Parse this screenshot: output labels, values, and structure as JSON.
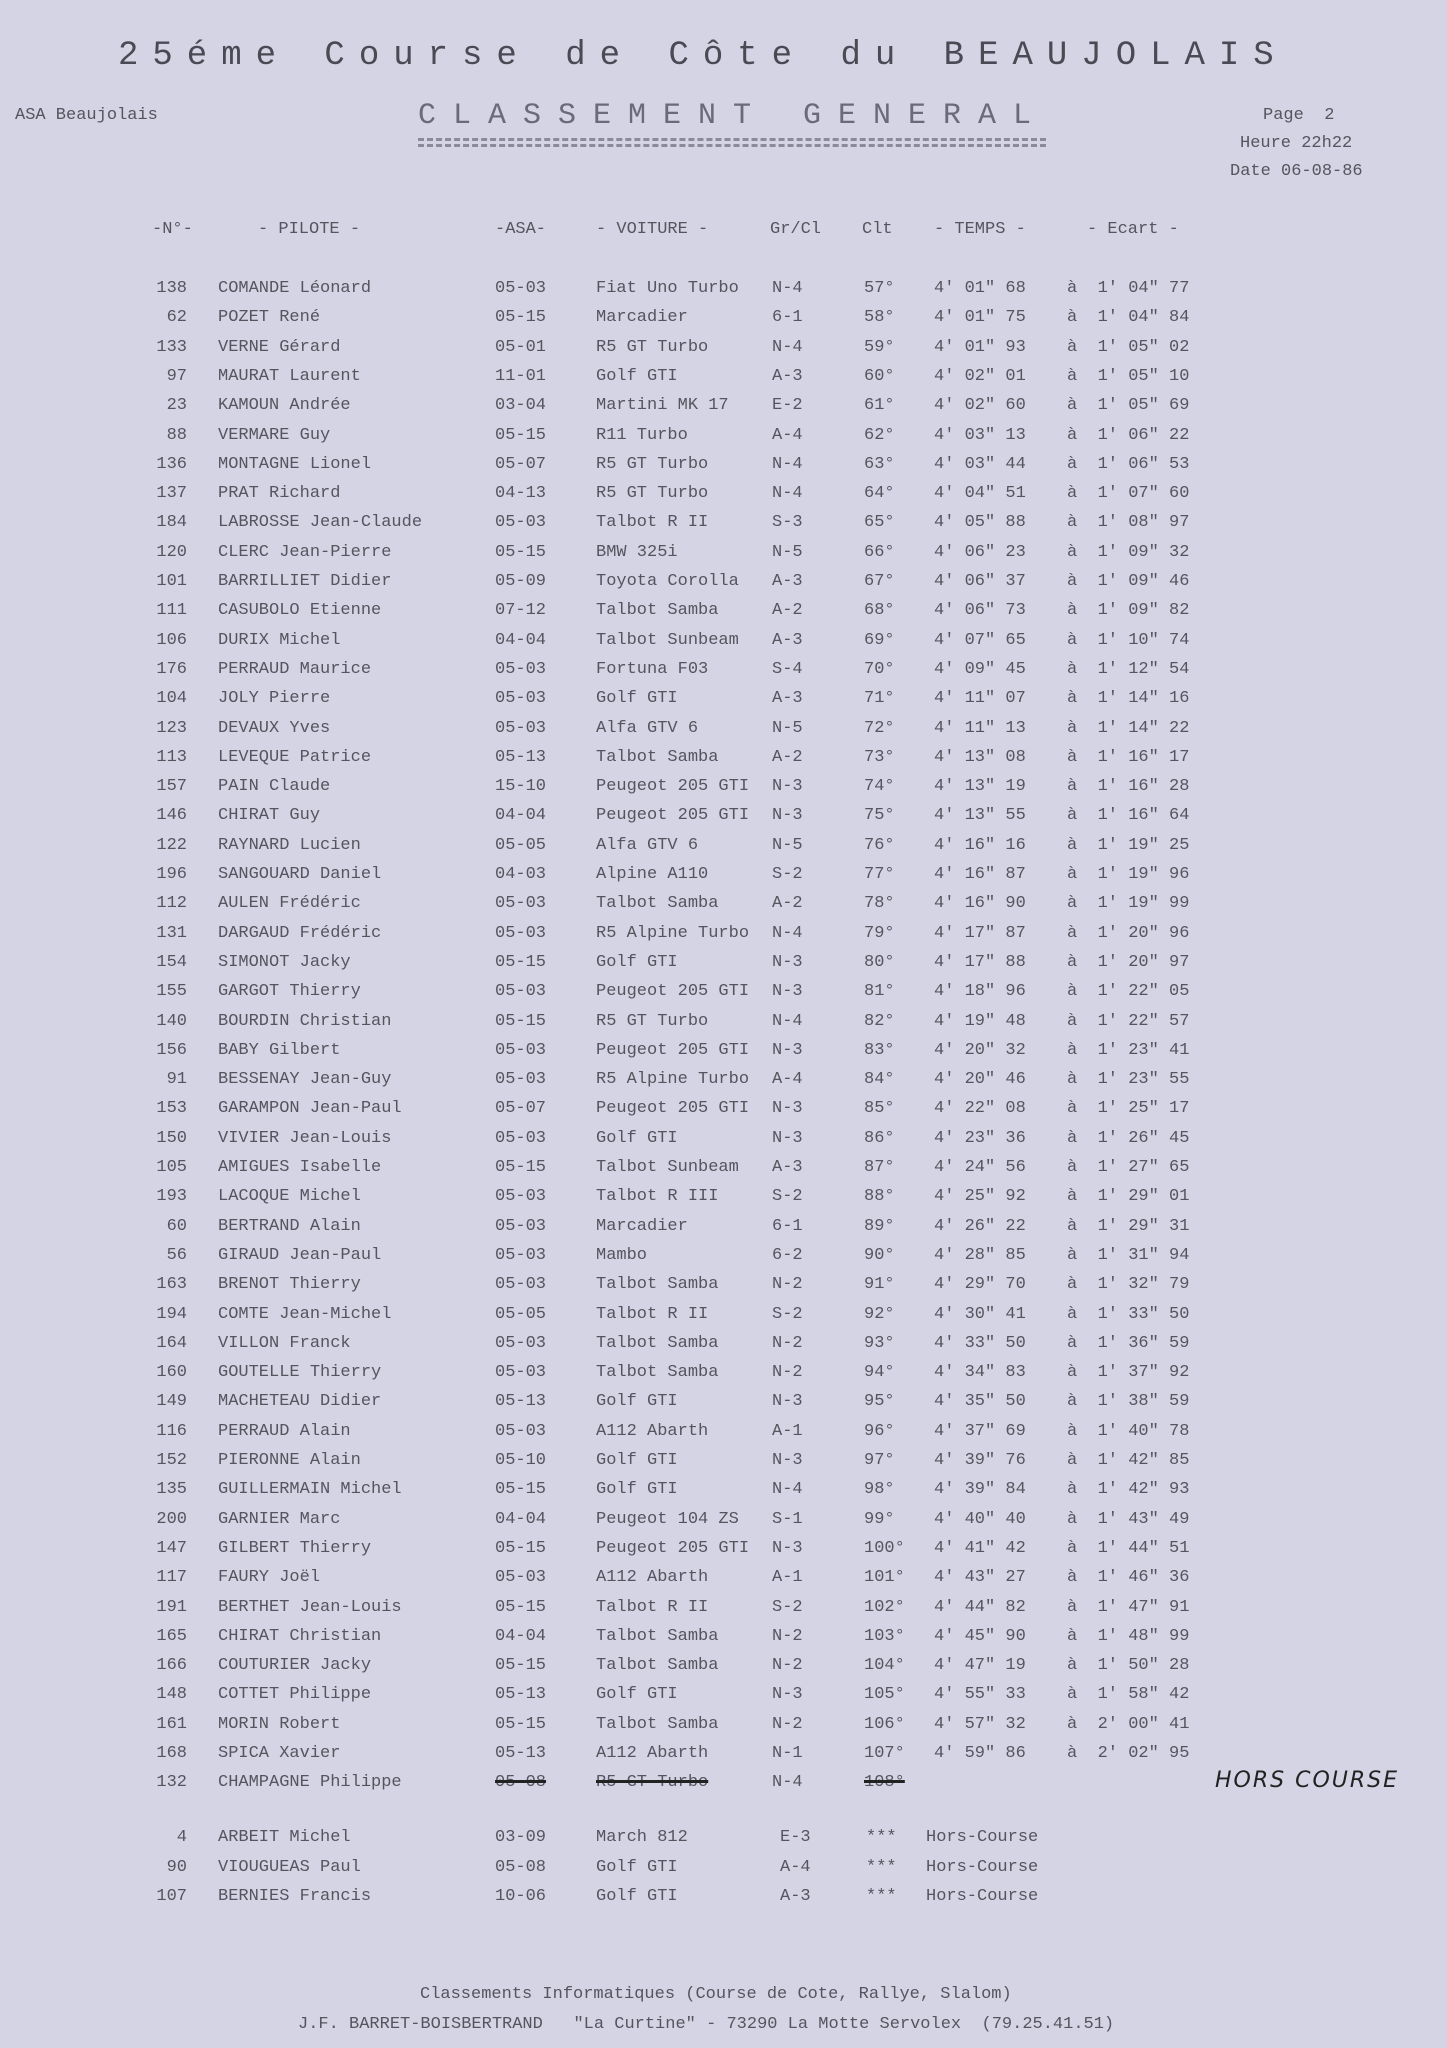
{
  "header": {
    "title": "25éme Course de Côte du BEAUJOLAIS",
    "org": "ASA Beaujolais",
    "subtitle": "CLASSEMENT GENERAL",
    "page": "Page  2",
    "time": "Heure 22h22",
    "date": "Date 06-08-86"
  },
  "table": {
    "columns": [
      "-N°-",
      "- PILOTE -",
      "-ASA-",
      "- VOITURE -",
      "Gr/Cl",
      "Clt",
      "- TEMPS -",
      "- Ecart -"
    ],
    "rows": [
      [
        "138",
        "COMANDE Léonard",
        "05-03",
        "Fiat Uno Turbo",
        "N-4",
        "57°",
        "4' 01\" 68",
        "à  1' 04\" 77"
      ],
      [
        "62",
        "POZET René",
        "05-15",
        "Marcadier",
        "6-1",
        "58°",
        "4' 01\" 75",
        "à  1' 04\" 84"
      ],
      [
        "133",
        "VERNE Gérard",
        "05-01",
        "R5 GT Turbo",
        "N-4",
        "59°",
        "4' 01\" 93",
        "à  1' 05\" 02"
      ],
      [
        "97",
        "MAURAT Laurent",
        "11-01",
        "Golf GTI",
        "A-3",
        "60°",
        "4' 02\" 01",
        "à  1' 05\" 10"
      ],
      [
        "23",
        "KAMOUN Andrée",
        "03-04",
        "Martini MK 17",
        "E-2",
        "61°",
        "4' 02\" 60",
        "à  1' 05\" 69"
      ],
      [
        "88",
        "VERMARE Guy",
        "05-15",
        "R11 Turbo",
        "A-4",
        "62°",
        "4' 03\" 13",
        "à  1' 06\" 22"
      ],
      [
        "136",
        "MONTAGNE Lionel",
        "05-07",
        "R5 GT Turbo",
        "N-4",
        "63°",
        "4' 03\" 44",
        "à  1' 06\" 53"
      ],
      [
        "137",
        "PRAT Richard",
        "04-13",
        "R5 GT Turbo",
        "N-4",
        "64°",
        "4' 04\" 51",
        "à  1' 07\" 60"
      ],
      [
        "184",
        "LABROSSE Jean-Claude",
        "05-03",
        "Talbot R II",
        "S-3",
        "65°",
        "4' 05\" 88",
        "à  1' 08\" 97"
      ],
      [
        "120",
        "CLERC Jean-Pierre",
        "05-15",
        "BMW 325i",
        "N-5",
        "66°",
        "4' 06\" 23",
        "à  1' 09\" 32"
      ],
      [
        "101",
        "BARRILLIET Didier",
        "05-09",
        "Toyota Corolla",
        "A-3",
        "67°",
        "4' 06\" 37",
        "à  1' 09\" 46"
      ],
      [
        "111",
        "CASUBOLO Etienne",
        "07-12",
        "Talbot Samba",
        "A-2",
        "68°",
        "4' 06\" 73",
        "à  1' 09\" 82"
      ],
      [
        "106",
        "DURIX Michel",
        "04-04",
        "Talbot Sunbeam",
        "A-3",
        "69°",
        "4' 07\" 65",
        "à  1' 10\" 74"
      ],
      [
        "176",
        "PERRAUD Maurice",
        "05-03",
        "Fortuna F03",
        "S-4",
        "70°",
        "4' 09\" 45",
        "à  1' 12\" 54"
      ],
      [
        "104",
        "JOLY Pierre",
        "05-03",
        "Golf GTI",
        "A-3",
        "71°",
        "4' 11\" 07",
        "à  1' 14\" 16"
      ],
      [
        "123",
        "DEVAUX Yves",
        "05-03",
        "Alfa GTV 6",
        "N-5",
        "72°",
        "4' 11\" 13",
        "à  1' 14\" 22"
      ],
      [
        "113",
        "LEVEQUE Patrice",
        "05-13",
        "Talbot Samba",
        "A-2",
        "73°",
        "4' 13\" 08",
        "à  1' 16\" 17"
      ],
      [
        "157",
        "PAIN Claude",
        "15-10",
        "Peugeot 205 GTI",
        "N-3",
        "74°",
        "4' 13\" 19",
        "à  1' 16\" 28"
      ],
      [
        "146",
        "CHIRAT Guy",
        "04-04",
        "Peugeot 205 GTI",
        "N-3",
        "75°",
        "4' 13\" 55",
        "à  1' 16\" 64"
      ],
      [
        "122",
        "RAYNARD Lucien",
        "05-05",
        "Alfa GTV 6",
        "N-5",
        "76°",
        "4' 16\" 16",
        "à  1' 19\" 25"
      ],
      [
        "196",
        "SANGOUARD Daniel",
        "04-03",
        "Alpine A110",
        "S-2",
        "77°",
        "4' 16\" 87",
        "à  1' 19\" 96"
      ],
      [
        "112",
        "AULEN Frédéric",
        "05-03",
        "Talbot Samba",
        "A-2",
        "78°",
        "4' 16\" 90",
        "à  1' 19\" 99"
      ],
      [
        "131",
        "DARGAUD Frédéric",
        "05-03",
        "R5 Alpine Turbo",
        "N-4",
        "79°",
        "4' 17\" 87",
        "à  1' 20\" 96"
      ],
      [
        "154",
        "SIMONOT Jacky",
        "05-15",
        "Golf GTI",
        "N-3",
        "80°",
        "4' 17\" 88",
        "à  1' 20\" 97"
      ],
      [
        "155",
        "GARGOT Thierry",
        "05-03",
        "Peugeot 205 GTI",
        "N-3",
        "81°",
        "4' 18\" 96",
        "à  1' 22\" 05"
      ],
      [
        "140",
        "BOURDIN Christian",
        "05-15",
        "R5 GT Turbo",
        "N-4",
        "82°",
        "4' 19\" 48",
        "à  1' 22\" 57"
      ],
      [
        "156",
        "BABY Gilbert",
        "05-03",
        "Peugeot 205 GTI",
        "N-3",
        "83°",
        "4' 20\" 32",
        "à  1' 23\" 41"
      ],
      [
        "91",
        "BESSENAY Jean-Guy",
        "05-03",
        "R5 Alpine Turbo",
        "A-4",
        "84°",
        "4' 20\" 46",
        "à  1' 23\" 55"
      ],
      [
        "153",
        "GARAMPON Jean-Paul",
        "05-07",
        "Peugeot 205 GTI",
        "N-3",
        "85°",
        "4' 22\" 08",
        "à  1' 25\" 17"
      ],
      [
        "150",
        "VIVIER Jean-Louis",
        "05-03",
        "Golf GTI",
        "N-3",
        "86°",
        "4' 23\" 36",
        "à  1' 26\" 45"
      ],
      [
        "105",
        "AMIGUES Isabelle",
        "05-15",
        "Talbot Sunbeam",
        "A-3",
        "87°",
        "4' 24\" 56",
        "à  1' 27\" 65"
      ],
      [
        "193",
        "LACOQUE Michel",
        "05-03",
        "Talbot R III",
        "S-2",
        "88°",
        "4' 25\" 92",
        "à  1' 29\" 01"
      ],
      [
        "60",
        "BERTRAND Alain",
        "05-03",
        "Marcadier",
        "6-1",
        "89°",
        "4' 26\" 22",
        "à  1' 29\" 31"
      ],
      [
        "56",
        "GIRAUD Jean-Paul",
        "05-03",
        "Mambo",
        "6-2",
        "90°",
        "4' 28\" 85",
        "à  1' 31\" 94"
      ],
      [
        "163",
        "BRENOT Thierry",
        "05-03",
        "Talbot Samba",
        "N-2",
        "91°",
        "4' 29\" 70",
        "à  1' 32\" 79"
      ],
      [
        "194",
        "COMTE Jean-Michel",
        "05-05",
        "Talbot R II",
        "S-2",
        "92°",
        "4' 30\" 41",
        "à  1' 33\" 50"
      ],
      [
        "164",
        "VILLON Franck",
        "05-03",
        "Talbot Samba",
        "N-2",
        "93°",
        "4' 33\" 50",
        "à  1' 36\" 59"
      ],
      [
        "160",
        "GOUTELLE Thierry",
        "05-03",
        "Talbot Samba",
        "N-2",
        "94°",
        "4' 34\" 83",
        "à  1' 37\" 92"
      ],
      [
        "149",
        "MACHETEAU Didier",
        "05-13",
        "Golf GTI",
        "N-3",
        "95°",
        "4' 35\" 50",
        "à  1' 38\" 59"
      ],
      [
        "116",
        "PERRAUD Alain",
        "05-03",
        "A112 Abarth",
        "A-1",
        "96°",
        "4' 37\" 69",
        "à  1' 40\" 78"
      ],
      [
        "152",
        "PIERONNE Alain",
        "05-10",
        "Golf GTI",
        "N-3",
        "97°",
        "4' 39\" 76",
        "à  1' 42\" 85"
      ],
      [
        "135",
        "GUILLERMAIN Michel",
        "05-15",
        "Golf GTI",
        "N-4",
        "98°",
        "4' 39\" 84",
        "à  1' 42\" 93"
      ],
      [
        "200",
        "GARNIER Marc",
        "04-04",
        "Peugeot 104 ZS",
        "S-1",
        "99°",
        "4' 40\" 40",
        "à  1' 43\" 49"
      ],
      [
        "147",
        "GILBERT Thierry",
        "05-15",
        "Peugeot 205 GTI",
        "N-3",
        "100°",
        "4' 41\" 42",
        "à  1' 44\" 51"
      ],
      [
        "117",
        "FAURY Joël",
        "05-03",
        "A112 Abarth",
        "A-1",
        "101°",
        "4' 43\" 27",
        "à  1' 46\" 36"
      ],
      [
        "191",
        "BERTHET Jean-Louis",
        "05-15",
        "Talbot R II",
        "S-2",
        "102°",
        "4' 44\" 82",
        "à  1' 47\" 91"
      ],
      [
        "165",
        "CHIRAT Christian",
        "04-04",
        "Talbot Samba",
        "N-2",
        "103°",
        "4' 45\" 90",
        "à  1' 48\" 99"
      ],
      [
        "166",
        "COUTURIER Jacky",
        "05-15",
        "Talbot Samba",
        "N-2",
        "104°",
        "4' 47\" 19",
        "à  1' 50\" 28"
      ],
      [
        "148",
        "COTTET Philippe",
        "05-13",
        "Golf GTI",
        "N-3",
        "105°",
        "4' 55\" 33",
        "à  1' 58\" 42"
      ],
      [
        "161",
        "MORIN Robert",
        "05-15",
        "Talbot Samba",
        "N-2",
        "106°",
        "4' 57\" 32",
        "à  2' 00\" 41"
      ],
      [
        "168",
        "SPICA Xavier",
        "05-13",
        "A112 Abarth",
        "N-1",
        "107°",
        "4' 59\" 86",
        "à  2' 02\" 95"
      ]
    ],
    "withdrawn": {
      "cells": [
        "132",
        "CHAMPAGNE Philippe",
        "05-08",
        "R5 GT Turbo",
        "N-4",
        "108°"
      ],
      "note": "HORS COURSE"
    },
    "hors_course": [
      [
        "4",
        "ARBEIT Michel",
        "03-09",
        "March 812",
        "E-3",
        "***",
        "Hors-Course"
      ],
      [
        "90",
        "VIOUGUEAS Paul",
        "05-08",
        "Golf GTI",
        "A-4",
        "***",
        "Hors-Course"
      ],
      [
        "107",
        "BERNIES Francis",
        "10-06",
        "Golf GTI",
        "A-3",
        "***",
        "Hors-Course"
      ]
    ]
  },
  "footer": {
    "line1": "Classements Informatiques (Course de Cote, Rallye, Slalom)",
    "line2": "J.F. BARRET-BOISBERTRAND   \"La Curtine\" - 73290 La Motte Servolex  (79.25.41.51)"
  }
}
